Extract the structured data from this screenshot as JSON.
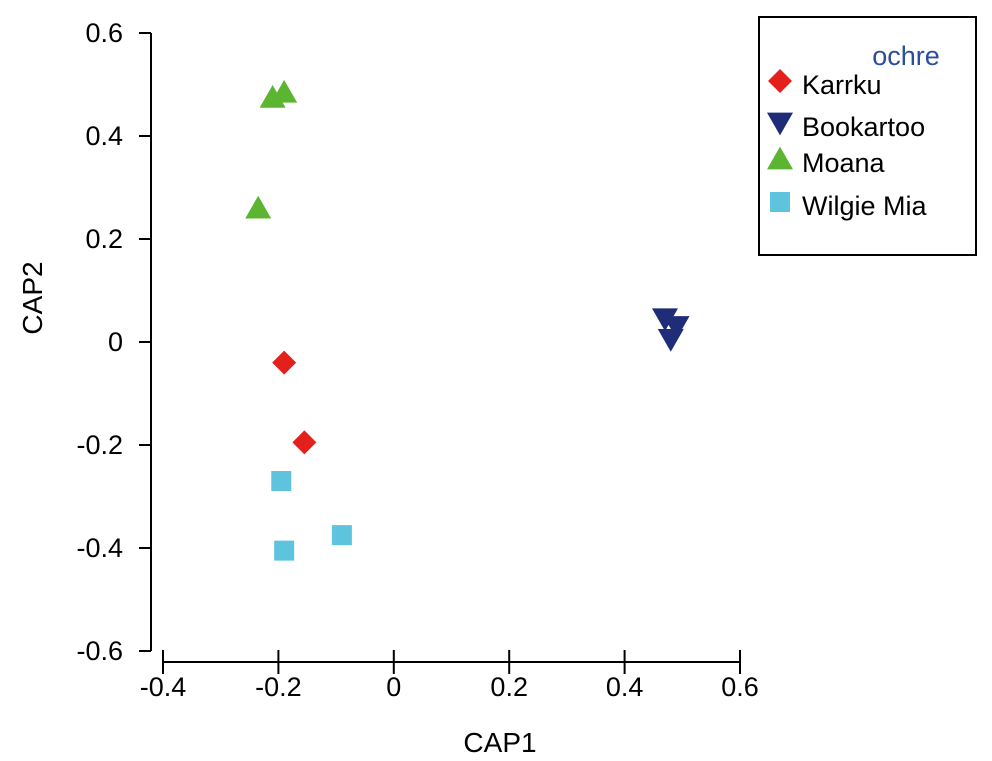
{
  "chart_data": {
    "type": "scatter",
    "xlabel": "CAP1",
    "ylabel": "CAP2",
    "xlim": [
      -0.4,
      0.6
    ],
    "ylim": [
      -0.6,
      0.6
    ],
    "x_ticks": [
      -0.4,
      -0.2,
      0,
      0.2,
      0.4,
      0.6
    ],
    "y_ticks": [
      0.6,
      0.4,
      0.2,
      0,
      -0.2,
      -0.4,
      -0.6
    ],
    "x_tick_labels": [
      "-0.4",
      "-0.2",
      "0",
      "0.2",
      "0.4",
      "0.6"
    ],
    "y_tick_labels": [
      "0.6",
      "0.4",
      "0.2",
      "0",
      "-0.2",
      "-0.4",
      "-0.6"
    ],
    "grid": false,
    "legend_title": "ochre",
    "legend_title_color": "#2b4d9e",
    "legend_position": "top-right",
    "series": [
      {
        "name": "Karrku",
        "marker": "diamond",
        "color": "#e3201b",
        "points": [
          {
            "x": -0.19,
            "y": -0.04
          },
          {
            "x": -0.155,
            "y": -0.195
          }
        ]
      },
      {
        "name": "Bookartoo",
        "marker": "triangle-down",
        "color": "#1f2d78",
        "points": [
          {
            "x": 0.47,
            "y": 0.045
          },
          {
            "x": 0.49,
            "y": 0.03
          },
          {
            "x": 0.48,
            "y": 0.005
          }
        ]
      },
      {
        "name": "Moana",
        "marker": "triangle-up",
        "color": "#5cb531",
        "points": [
          {
            "x": -0.21,
            "y": 0.475
          },
          {
            "x": -0.19,
            "y": 0.485
          },
          {
            "x": -0.235,
            "y": 0.26
          }
        ]
      },
      {
        "name": "Wilgie Mia",
        "marker": "square",
        "color": "#5ec3dc",
        "points": [
          {
            "x": -0.195,
            "y": -0.27
          },
          {
            "x": -0.19,
            "y": -0.405
          },
          {
            "x": -0.09,
            "y": -0.375
          }
        ]
      }
    ]
  }
}
